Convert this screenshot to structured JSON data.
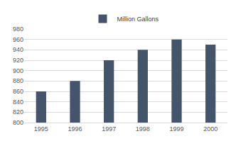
{
  "chart_data": {
    "type": "bar",
    "categories": [
      "1995",
      "1996",
      "1997",
      "1998",
      "1999",
      "2000"
    ],
    "series": [
      {
        "name": "Million Gallons",
        "color": "#44546a",
        "values": [
          860,
          880,
          920,
          940,
          960,
          950
        ]
      }
    ],
    "ylim": [
      800,
      980
    ],
    "yticks": [
      800,
      820,
      840,
      860,
      880,
      900,
      920,
      940,
      960,
      980
    ],
    "grid": true,
    "legend": "top"
  }
}
